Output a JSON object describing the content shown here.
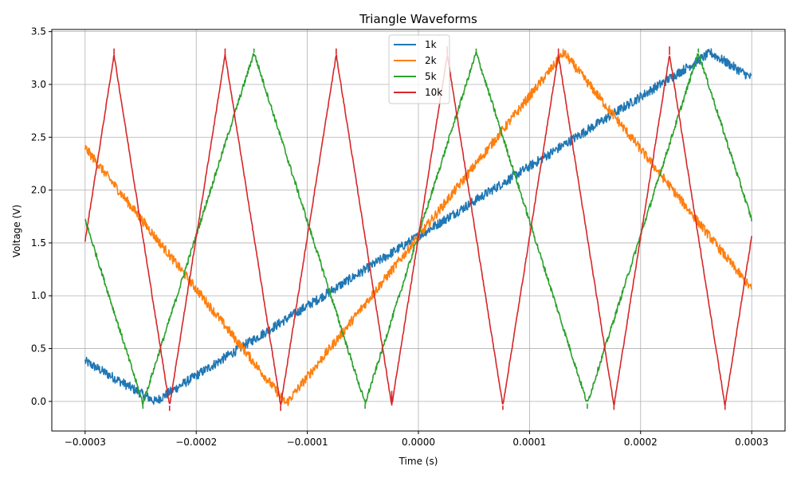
{
  "chart_data": {
    "type": "line",
    "title": "Triangle Waveforms",
    "xlabel": "Time (s)",
    "ylabel": "Voltage (V)",
    "xlim": [
      -0.00033,
      0.00033
    ],
    "ylim": [
      -0.28,
      3.52
    ],
    "x_ticks": [
      -0.0003,
      -0.0002,
      -0.0001,
      0.0,
      0.0001,
      0.0002,
      0.0003
    ],
    "x_tick_labels": [
      "−0.0003",
      "−0.0002",
      "−0.0001",
      "0.0000",
      "0.0001",
      "0.0002",
      "0.0003"
    ],
    "y_ticks": [
      0.0,
      0.5,
      1.0,
      1.5,
      2.0,
      2.5,
      3.0,
      3.5
    ],
    "y_tick_labels": [
      "0.0",
      "0.5",
      "1.0",
      "1.5",
      "2.0",
      "2.5",
      "3.0",
      "3.5"
    ],
    "grid": true,
    "legend_position": "top-center",
    "series": [
      {
        "name": "1k",
        "color": "#1f77b4",
        "noise": 0.09,
        "x": [
          -0.0003,
          -0.000237,
          0.000263,
          0.0003
        ],
        "y": [
          0.38,
          0.0,
          3.3,
          3.06
        ]
      },
      {
        "name": "2k",
        "color": "#ff7f0e",
        "noise": 0.09,
        "x": [
          -0.0003,
          -0.000119,
          0.000131,
          0.0003
        ],
        "y": [
          2.4,
          -0.02,
          3.3,
          1.06
        ]
      },
      {
        "name": "5k",
        "color": "#2ca02c",
        "noise": 0.05,
        "x": [
          -0.0003,
          -0.000248,
          -0.000148,
          -4.8e-05,
          5.2e-05,
          0.000152,
          0.000252,
          0.0003
        ],
        "y": [
          1.72,
          -0.02,
          3.3,
          -0.02,
          3.3,
          -0.02,
          3.3,
          1.72
        ],
        "spikes": [
          {
            "x": -0.000248,
            "y": -0.07
          },
          {
            "x": -0.000148,
            "y": 3.34
          },
          {
            "x": -4.8e-05,
            "y": -0.07
          },
          {
            "x": 5.2e-05,
            "y": 3.34
          },
          {
            "x": 0.000152,
            "y": -0.07
          },
          {
            "x": 0.000252,
            "y": 3.34
          }
        ]
      },
      {
        "name": "10k",
        "color": "#d62728",
        "noise": 0.025,
        "x": [
          -0.0003,
          -0.000274,
          -0.000224,
          -0.000174,
          -0.000124,
          -7.4e-05,
          -2.4e-05,
          2.6e-05,
          7.6e-05,
          0.000126,
          0.000176,
          0.000226,
          0.000276,
          0.0003
        ],
        "y": [
          1.52,
          3.28,
          -0.04,
          3.28,
          -0.04,
          3.28,
          -0.04,
          3.28,
          -0.04,
          3.28,
          -0.04,
          3.28,
          -0.04,
          1.56
        ],
        "spikes": [
          {
            "x": -0.000274,
            "y": 3.34
          },
          {
            "x": -0.000224,
            "y": -0.09
          },
          {
            "x": -0.000174,
            "y": 3.34
          },
          {
            "x": -0.000124,
            "y": -0.09
          },
          {
            "x": -7.4e-05,
            "y": 3.34
          },
          {
            "x": -2.4e-05,
            "y": 0.1
          },
          {
            "x": 2.6e-05,
            "y": 3.36
          },
          {
            "x": 7.6e-05,
            "y": -0.08
          },
          {
            "x": 0.000126,
            "y": 3.34
          },
          {
            "x": 0.000176,
            "y": -0.08
          },
          {
            "x": 0.000226,
            "y": 3.36
          },
          {
            "x": 0.000276,
            "y": -0.08
          }
        ]
      }
    ]
  }
}
